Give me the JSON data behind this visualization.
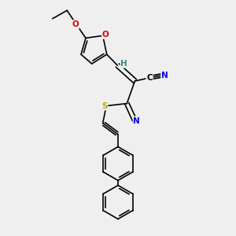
{
  "bg_color": "#efefef",
  "atom_colors": {
    "C": "#000000",
    "N": "#0000ee",
    "O": "#dd0000",
    "S": "#bbaa00",
    "H": "#338888"
  },
  "font_size": 7.5,
  "figsize": [
    3.0,
    3.0
  ],
  "dpi": 100,
  "lw": 1.2
}
